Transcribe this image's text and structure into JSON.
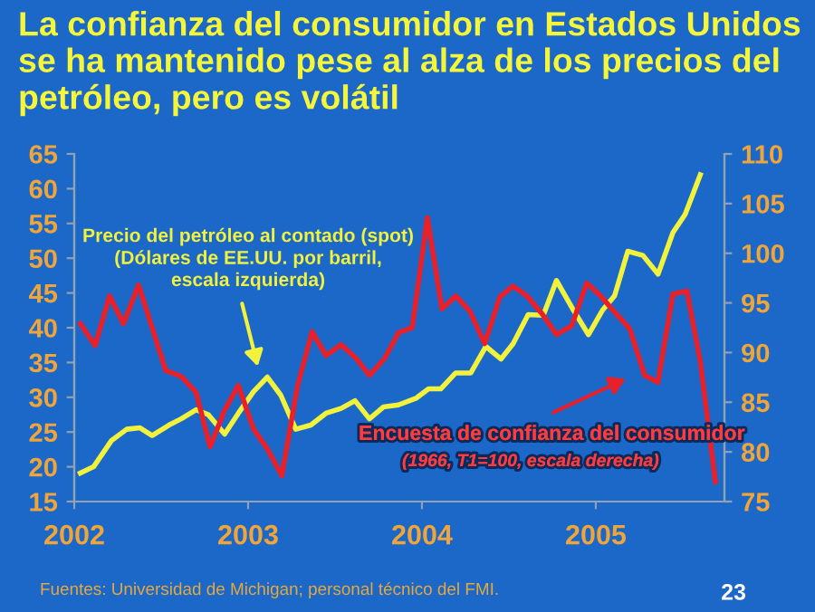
{
  "chart_data": {
    "type": "line",
    "title": "La confianza del consumidor en Estados Unidos se ha mantenido pese al alza de los precios del petróleo, pero es volátil",
    "series": [
      {
        "color": "#f2f23c",
        "x": [
          2002.035,
          2002.111,
          2002.215,
          2002.302,
          2002.378,
          2002.448,
          2002.545,
          2002.615,
          2002.701,
          2002.771,
          2002.865,
          2002.944,
          2003.031,
          2003.111,
          2003.188,
          2003.274,
          2003.361,
          2003.448,
          2003.535,
          2003.615,
          2003.698,
          2003.778,
          2003.865,
          2003.969,
          2004.038,
          2004.108,
          2004.194,
          2004.281,
          2004.368,
          2004.455,
          2004.524,
          2004.611,
          2004.698,
          2004.774,
          2004.872,
          2004.958,
          2005.038,
          2005.108,
          2005.184,
          2005.271,
          2005.358,
          2005.444,
          2005.514,
          2005.601
        ],
        "values": [
          19.1,
          20.0,
          23.8,
          25.4,
          25.6,
          24.5,
          26.0,
          26.9,
          28.2,
          27.5,
          24.7,
          27.7,
          30.8,
          32.9,
          30.3,
          25.4,
          26.0,
          27.7,
          28.4,
          29.5,
          26.9,
          28.6,
          28.9,
          29.9,
          31.2,
          31.2,
          33.5,
          33.5,
          37.3,
          35.5,
          37.7,
          41.9,
          41.8,
          46.8,
          42.5,
          39.0,
          42.5,
          44.6,
          51.0,
          50.4,
          47.7,
          53.7,
          56.3,
          62.0
        ]
      },
      {
        "color": "#e8202a",
        "axis": "y2",
        "x": [
          2002.035,
          2002.12,
          2002.203,
          2002.283,
          2002.37,
          2002.526,
          2002.615,
          2002.701,
          2002.781,
          2002.865,
          2002.944,
          2003.031,
          2003.111,
          2003.194,
          2003.285,
          2003.368,
          2003.448,
          2003.535,
          2003.622,
          2003.698,
          2003.785,
          2003.865,
          2003.944,
          2004.031,
          2004.115,
          2004.195,
          2004.274,
          2004.361,
          2004.448,
          2004.524,
          2004.604,
          2004.691,
          2004.774,
          2004.861,
          2004.948,
          2005.028,
          2005.107,
          2005.195,
          2005.281,
          2005.357,
          2005.444,
          2005.524,
          2005.601,
          2005.688
        ],
        "values": [
          92.9,
          90.7,
          95.7,
          92.9,
          96.8,
          88.2,
          87.6,
          86.0,
          80.5,
          84.2,
          86.7,
          82.3,
          80.3,
          77.6,
          86.7,
          92.1,
          89.7,
          90.8,
          89.4,
          87.7,
          89.4,
          92.0,
          92.5,
          103.6,
          94.4,
          95.7,
          94.2,
          90.9,
          95.6,
          96.7,
          95.7,
          93.9,
          91.8,
          92.7,
          97.0,
          95.7,
          94.1,
          92.4,
          87.7,
          87.0,
          95.9,
          96.2,
          89.1,
          77.0
        ]
      }
    ],
    "xlim": [
      2002,
      2005.74
    ],
    "xticks": [
      2002,
      2003,
      2004,
      2005
    ],
    "ylim": [
      15,
      65
    ],
    "yticks": [
      15,
      20,
      25,
      30,
      35,
      40,
      45,
      50,
      55,
      60,
      65
    ],
    "y2lim": [
      75,
      110
    ],
    "y2ticks": [
      75,
      80,
      85,
      90,
      95,
      100,
      105,
      110
    ],
    "marker": "none",
    "line_style": "solid",
    "grid": false,
    "legend": false,
    "annotations": [
      "Precio del petróleo al contado (spot)\n(Dólares de EE.UU. por barril,\nescala izquierda)",
      "Encuesta de confianza del consumidor",
      "(1966, T1=100, escala derecha)",
      "Fuentes: Universidad de Michigan; personal técnico del FMI.",
      "23"
    ]
  }
}
